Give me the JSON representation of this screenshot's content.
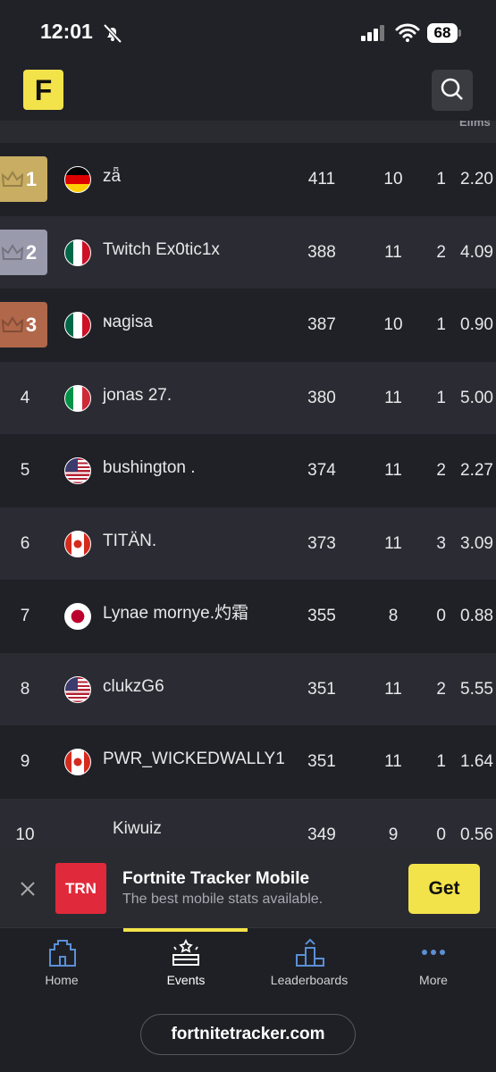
{
  "status_bar": {
    "time": "12:01",
    "battery": "68"
  },
  "header": {
    "logo": "F"
  },
  "table": {
    "header": {
      "elims": "Elims"
    },
    "rows": [
      [
        "1",
        "zǟ",
        "411",
        "10",
        "1",
        "2.20"
      ],
      [
        "2",
        "Twitch Ex0tic1x",
        "388",
        "11",
        "2",
        "4.09"
      ],
      [
        "3",
        "ɴagisa",
        "387",
        "10",
        "1",
        "0.90"
      ],
      [
        "4",
        "jonas 27.",
        "380",
        "11",
        "1",
        "5.00"
      ],
      [
        "5",
        "bushington .",
        "374",
        "11",
        "2",
        "2.27"
      ],
      [
        "6",
        "TITÄN.",
        "373",
        "11",
        "3",
        "3.09"
      ],
      [
        "7",
        "Lynae mornye.灼霜",
        "355",
        "8",
        "0",
        "0.88"
      ],
      [
        "8",
        "clukzG6",
        "351",
        "11",
        "2",
        "5.55"
      ],
      [
        "9",
        "PWR_WICKEDWALLY1",
        "351",
        "11",
        "1",
        "1.64"
      ],
      [
        "10",
        "Kiwuiz",
        "349",
        "9",
        "0",
        "0.56"
      ]
    ]
  },
  "ad": {
    "logo": "TRN",
    "title": "Fortnite Tracker Mobile",
    "subtitle": "The best mobile stats available.",
    "button": "Get"
  },
  "nav": [
    "Home",
    "Events",
    "Leaderboards",
    "More"
  ],
  "url": "fortnitetracker.com"
}
